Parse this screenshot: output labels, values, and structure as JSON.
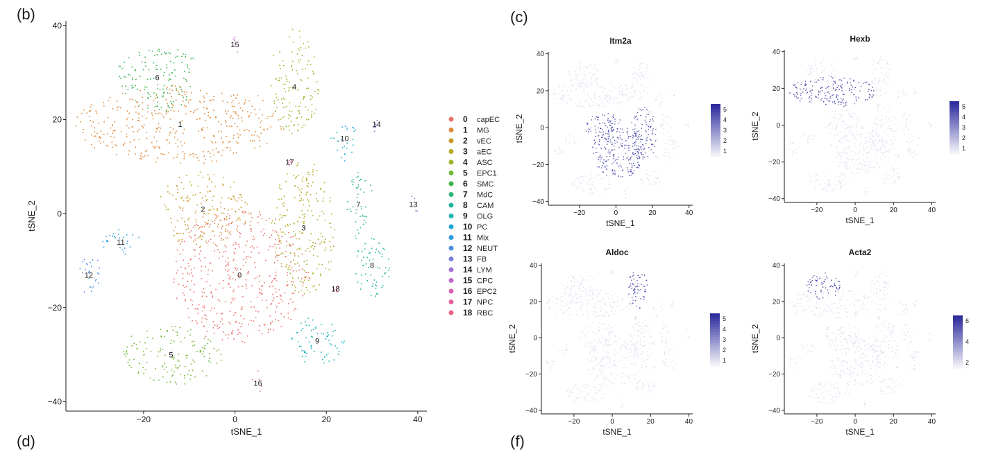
{
  "panel_labels": {
    "b": "(b)",
    "c": "(c)",
    "d": "(d)",
    "f": "(f)"
  },
  "chart_data": [
    {
      "type": "scatter",
      "panel": "(b)",
      "xlabel": "tSNE_1",
      "ylabel": "tSNE_2",
      "xlim": [
        -37,
        42
      ],
      "ylim": [
        -42,
        41
      ],
      "xticks": [
        -20,
        0,
        20,
        40
      ],
      "yticks": [
        -40,
        -20,
        0,
        20,
        40
      ],
      "grid": false,
      "legend_position": "right",
      "clusters": [
        {
          "id": "0",
          "name": "capEC",
          "color": "#E8736C",
          "cx": 1,
          "cy": -13,
          "rx": 15,
          "ry": 14
        },
        {
          "id": "1",
          "name": "MG",
          "color": "#DD8A3A",
          "cx": -12,
          "cy": 19,
          "rx": 23,
          "ry": 8
        },
        {
          "id": "2",
          "name": "vEC",
          "color": "#C89C2C",
          "cx": -7,
          "cy": 1,
          "rx": 10,
          "ry": 8
        },
        {
          "id": "3",
          "name": "aEC",
          "color": "#B3AA27",
          "cx": 15,
          "cy": -3,
          "rx": 7,
          "ry": 14
        },
        {
          "id": "4",
          "name": "ASC",
          "color": "#9DB52D",
          "cx": 13,
          "cy": 27,
          "rx": 5,
          "ry": 12
        },
        {
          "id": "5",
          "name": "EPC1",
          "color": "#75B83A",
          "cx": -14,
          "cy": -30,
          "rx": 11,
          "ry": 6
        },
        {
          "id": "6",
          "name": "SMC",
          "color": "#3DB54A",
          "cx": -17,
          "cy": 29,
          "rx": 9,
          "ry": 7
        },
        {
          "id": "7",
          "name": "MdC",
          "color": "#2EB67A",
          "cx": 27,
          "cy": 2,
          "rx": 3,
          "ry": 7
        },
        {
          "id": "8",
          "name": "CAM",
          "color": "#22B69C",
          "cx": 30,
          "cy": -11,
          "rx": 4,
          "ry": 7
        },
        {
          "id": "9",
          "name": "OLG",
          "color": "#1FB3B6",
          "cx": 18,
          "cy": -27,
          "rx": 6,
          "ry": 5
        },
        {
          "id": "10",
          "name": "PC",
          "color": "#1DA9CF",
          "cx": 24,
          "cy": 16,
          "rx": 3,
          "ry": 4
        },
        {
          "id": "11",
          "name": "Mix",
          "color": "#2E9DE0",
          "cx": -25,
          "cy": -6,
          "rx": 4,
          "ry": 3
        },
        {
          "id": "12",
          "name": "NEUT",
          "color": "#4A8DE0",
          "cx": -32,
          "cy": -13,
          "rx": 3,
          "ry": 4
        },
        {
          "id": "13",
          "name": "FB",
          "color": "#7B80D6",
          "cx": 39,
          "cy": 2,
          "rx": 1,
          "ry": 3
        },
        {
          "id": "14",
          "name": "LYM",
          "color": "#A175D0",
          "cx": 31,
          "cy": 19,
          "rx": 1,
          "ry": 2
        },
        {
          "id": "15",
          "name": "CPC",
          "color": "#C06ACB",
          "cx": 0,
          "cy": 36,
          "rx": 1,
          "ry": 1.5
        },
        {
          "id": "16",
          "name": "EPC2",
          "color": "#D763B5",
          "cx": 5,
          "cy": -36,
          "rx": 0.5,
          "ry": 3
        },
        {
          "id": "17",
          "name": "NPC",
          "color": "#E760A0",
          "cx": 12,
          "cy": 11,
          "rx": 0.5,
          "ry": 1
        },
        {
          "id": "18",
          "name": "RBC",
          "color": "#EB6487",
          "cx": 22,
          "cy": -16,
          "rx": 0.5,
          "ry": 0.5
        }
      ]
    },
    {
      "type": "scatter",
      "panel": "(c)",
      "title": "Itm2a",
      "xlabel": "tSNE_1",
      "ylabel": "tSNE_2",
      "xlim": [
        -37,
        42
      ],
      "ylim": [
        -42,
        41
      ],
      "xticks": [
        -20,
        0,
        20,
        40
      ],
      "yticks": [
        -40,
        -20,
        0,
        20,
        40
      ],
      "colorbar_ticks": [
        "5",
        "4",
        "3",
        "2",
        "1"
      ],
      "high_clusters": [
        "0",
        "2",
        "3"
      ]
    },
    {
      "type": "scatter",
      "panel": "(c)",
      "title": "Hexb",
      "xlabel": "tSNE_1",
      "ylabel": "tSNE_2",
      "xlim": [
        -37,
        42
      ],
      "ylim": [
        -42,
        41
      ],
      "xticks": [
        -20,
        0,
        20,
        40
      ],
      "yticks": [
        -40,
        -20,
        0,
        20,
        40
      ],
      "colorbar_ticks": [
        "5",
        "4",
        "3",
        "2",
        "1"
      ],
      "high_clusters": [
        "1"
      ]
    },
    {
      "type": "scatter",
      "panel": "(c)",
      "title": "Aldoc",
      "xlabel": "tSNE_1",
      "ylabel": "tSNE_2",
      "xlim": [
        -37,
        42
      ],
      "ylim": [
        -42,
        41
      ],
      "xticks": [
        -20,
        0,
        20,
        40
      ],
      "yticks": [
        -40,
        -20,
        0,
        20,
        40
      ],
      "colorbar_ticks": [
        "5",
        "4",
        "3",
        "2",
        "1"
      ],
      "high_clusters": [
        "4"
      ]
    },
    {
      "type": "scatter",
      "panel": "(c)",
      "title": "Acta2",
      "xlabel": "tSNE_1",
      "ylabel": "tSNE_2",
      "xlim": [
        -37,
        42
      ],
      "ylim": [
        -42,
        41
      ],
      "xticks": [
        -20,
        0,
        20,
        40
      ],
      "yticks": [
        -40,
        -20,
        0,
        20,
        40
      ],
      "colorbar_ticks": [
        "6",
        "4",
        "2"
      ],
      "high_clusters": [
        "6"
      ]
    }
  ],
  "colors": {
    "low": "#D8D9EC",
    "high": "#2E2C9E",
    "axis": "#1a1a1a"
  }
}
